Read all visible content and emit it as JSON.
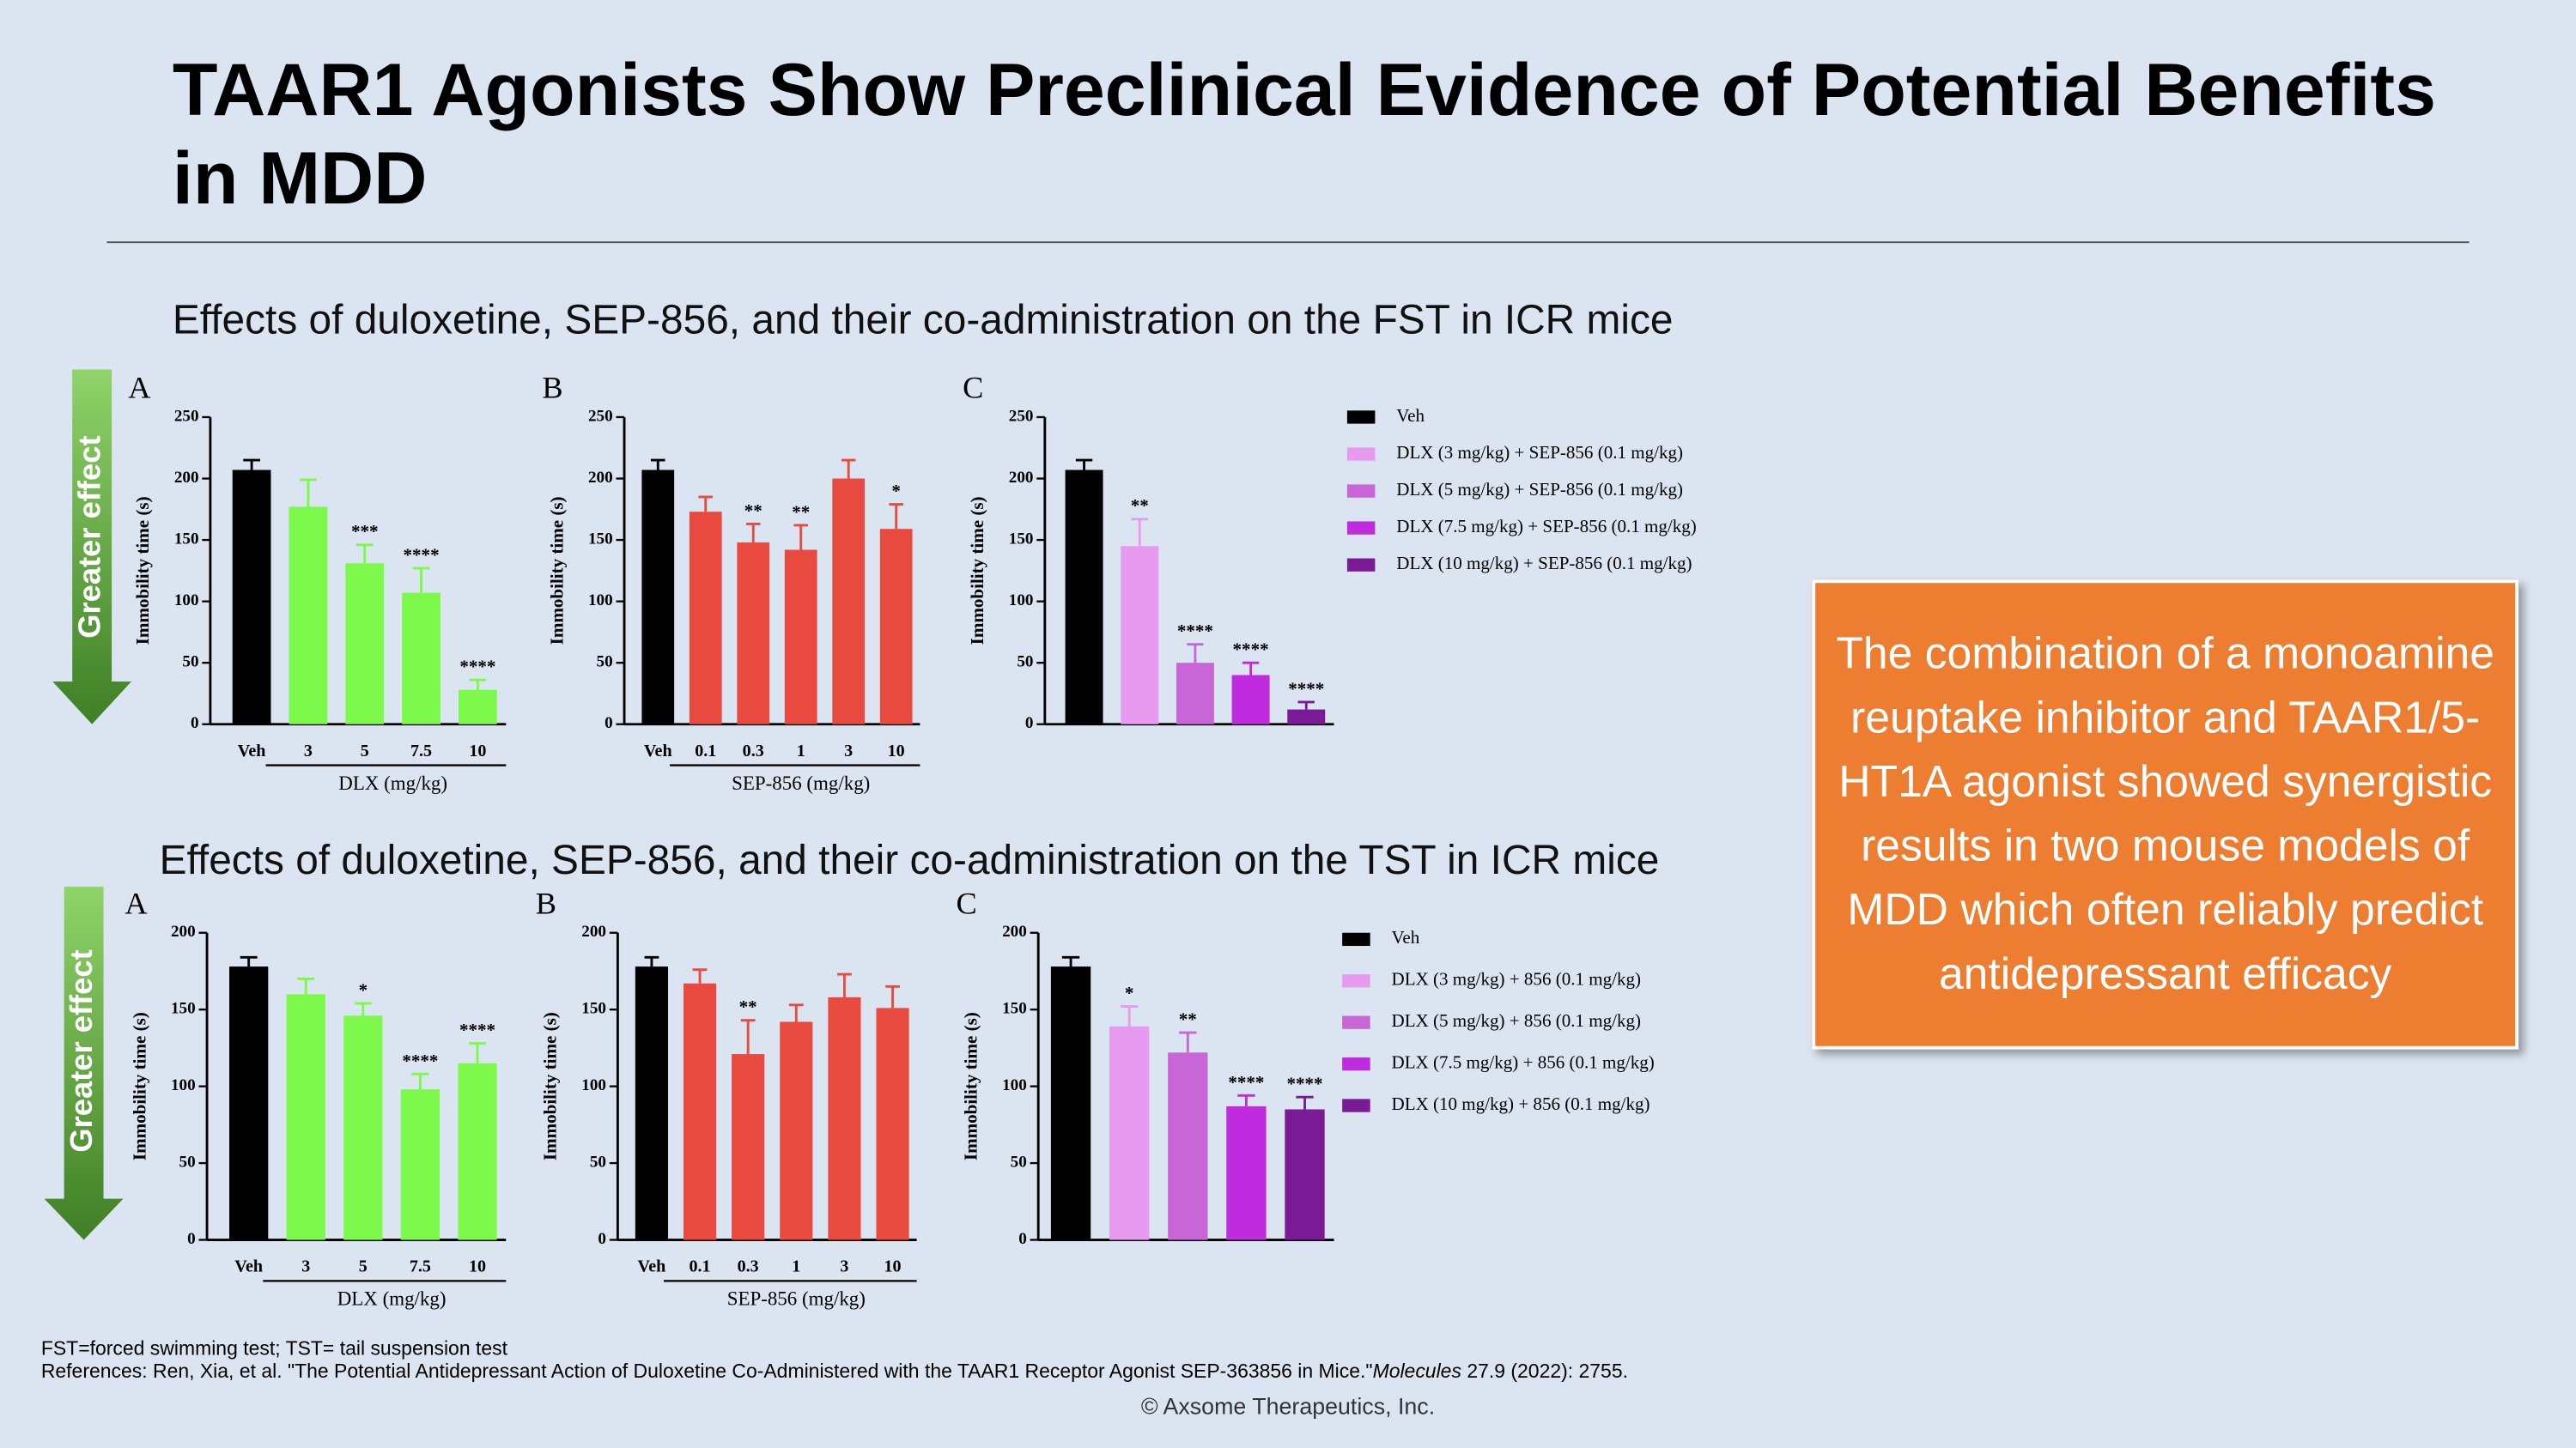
{
  "title": "TAAR1 Agonists Show Preclinical Evidence of Potential Benefits in MDD",
  "sections": [
    {
      "subtitle": "Effects of duloxetine, SEP-856, and their co-administration on the FST in ICR mice",
      "arrow_label": "Greater effect"
    },
    {
      "subtitle": "Effects of duloxetine, SEP-856, and their co-administration on the TST in ICR mice",
      "arrow_label": "Greater effect"
    }
  ],
  "callout": "The combination of a monoamine reuptake inhibitor and TAAR1/5-HT1A agonist showed synergistic results in two mouse models of MDD which often reliably predict antidepressant efficacy",
  "footnote": "FST=forced swimming test; TST= tail suspension test",
  "reference": {
    "prefix": "References: Ren, Xia, et al. \"The Potential Antidepressant Action of Duloxetine Co-Administered with the TAAR1 Receptor Agonist SEP-363856 in Mice.\"",
    "journal": "Molecules",
    "suffix": " 27.9 (2022): 2755."
  },
  "copyright": "© Axsome Therapeutics, Inc.",
  "chart_data": [
    {
      "type": "bar",
      "panel": "A",
      "ylabel": "Immobility time (s)",
      "xlabel": "DLX (mg/kg)",
      "categories": [
        "Veh",
        "3",
        "5",
        "7.5",
        "10"
      ],
      "values": [
        207,
        177,
        131,
        107,
        28
      ],
      "errors": [
        8,
        22,
        15,
        20,
        8
      ],
      "annotations": [
        null,
        null,
        "***",
        "****",
        "****"
      ],
      "colors": [
        "#000000",
        "#7cf94a",
        "#7cf94a",
        "#7cf94a",
        "#7cf94a"
      ],
      "ylim": [
        0,
        250
      ],
      "yticks": [
        0,
        50,
        100,
        150,
        200,
        250
      ]
    },
    {
      "type": "bar",
      "panel": "B",
      "ylabel": "Immobility time (s)",
      "xlabel": "SEP-856 (mg/kg)",
      "categories": [
        "Veh",
        "0.1",
        "0.3",
        "1",
        "3",
        "10"
      ],
      "values": [
        207,
        173,
        148,
        142,
        200,
        159
      ],
      "errors": [
        8,
        12,
        15,
        20,
        15,
        20
      ],
      "annotations": [
        null,
        null,
        "**",
        "**",
        null,
        "*"
      ],
      "colors": [
        "#000000",
        "#e84a3f",
        "#e84a3f",
        "#e84a3f",
        "#e84a3f",
        "#e84a3f"
      ],
      "ylim": [
        0,
        250
      ],
      "yticks": [
        0,
        50,
        100,
        150,
        200,
        250
      ]
    },
    {
      "type": "bar",
      "panel": "C",
      "ylabel": "Immobility time (s)",
      "legend": true,
      "categories": [
        "Veh",
        "DLX (3 mg/kg) + SEP-856 (0.1 mg/kg)",
        "DLX (5 mg/kg) + SEP-856 (0.1 mg/kg)",
        "DLX (7.5 mg/kg) + SEP-856 (0.1 mg/kg)",
        "DLX (10 mg/kg) + SEP-856 (0.1 mg/kg)"
      ],
      "values": [
        207,
        145,
        50,
        40,
        12
      ],
      "errors": [
        8,
        22,
        15,
        10,
        6
      ],
      "annotations": [
        null,
        "**",
        "****",
        "****",
        "****"
      ],
      "colors": [
        "#000000",
        "#e89af0",
        "#c866d8",
        "#c02be0",
        "#7a1a96"
      ],
      "ylim": [
        0,
        250
      ],
      "yticks": [
        0,
        50,
        100,
        150,
        200,
        250
      ]
    },
    {
      "type": "bar",
      "panel": "A",
      "ylabel": "Immobility time (s)",
      "xlabel": "DLX (mg/kg)",
      "categories": [
        "Veh",
        "3",
        "5",
        "7.5",
        "10"
      ],
      "values": [
        178,
        160,
        146,
        98,
        115
      ],
      "errors": [
        6,
        10,
        8,
        10,
        13
      ],
      "annotations": [
        null,
        null,
        "*",
        "****",
        "****"
      ],
      "colors": [
        "#000000",
        "#7cf94a",
        "#7cf94a",
        "#7cf94a",
        "#7cf94a"
      ],
      "ylim": [
        0,
        200
      ],
      "yticks": [
        0,
        50,
        100,
        150,
        200
      ]
    },
    {
      "type": "bar",
      "panel": "B",
      "ylabel": "Immobility time (s)",
      "xlabel": "SEP-856 (mg/kg)",
      "categories": [
        "Veh",
        "0.1",
        "0.3",
        "1",
        "3",
        "10"
      ],
      "values": [
        178,
        167,
        121,
        142,
        158,
        151
      ],
      "errors": [
        6,
        9,
        22,
        11,
        15,
        14
      ],
      "annotations": [
        null,
        null,
        "**",
        null,
        null,
        null
      ],
      "colors": [
        "#000000",
        "#e84a3f",
        "#e84a3f",
        "#e84a3f",
        "#e84a3f",
        "#e84a3f"
      ],
      "ylim": [
        0,
        200
      ],
      "yticks": [
        0,
        50,
        100,
        150,
        200
      ]
    },
    {
      "type": "bar",
      "panel": "C",
      "ylabel": "Immobility time (s)",
      "legend": true,
      "categories": [
        "Veh",
        "DLX (3 mg/kg) + 856 (0.1 mg/kg)",
        "DLX (5 mg/kg) + 856 (0.1 mg/kg)",
        "DLX (7.5 mg/kg) + 856 (0.1 mg/kg)",
        "DLX (10 mg/kg) + 856 (0.1 mg/kg)"
      ],
      "values": [
        178,
        139,
        122,
        87,
        85
      ],
      "errors": [
        6,
        13,
        13,
        7,
        8
      ],
      "annotations": [
        null,
        "*",
        "**",
        "****",
        "****"
      ],
      "colors": [
        "#000000",
        "#e89af0",
        "#c866d8",
        "#c02be0",
        "#7a1a96"
      ],
      "ylim": [
        0,
        200
      ],
      "yticks": [
        0,
        50,
        100,
        150,
        200
      ]
    }
  ]
}
